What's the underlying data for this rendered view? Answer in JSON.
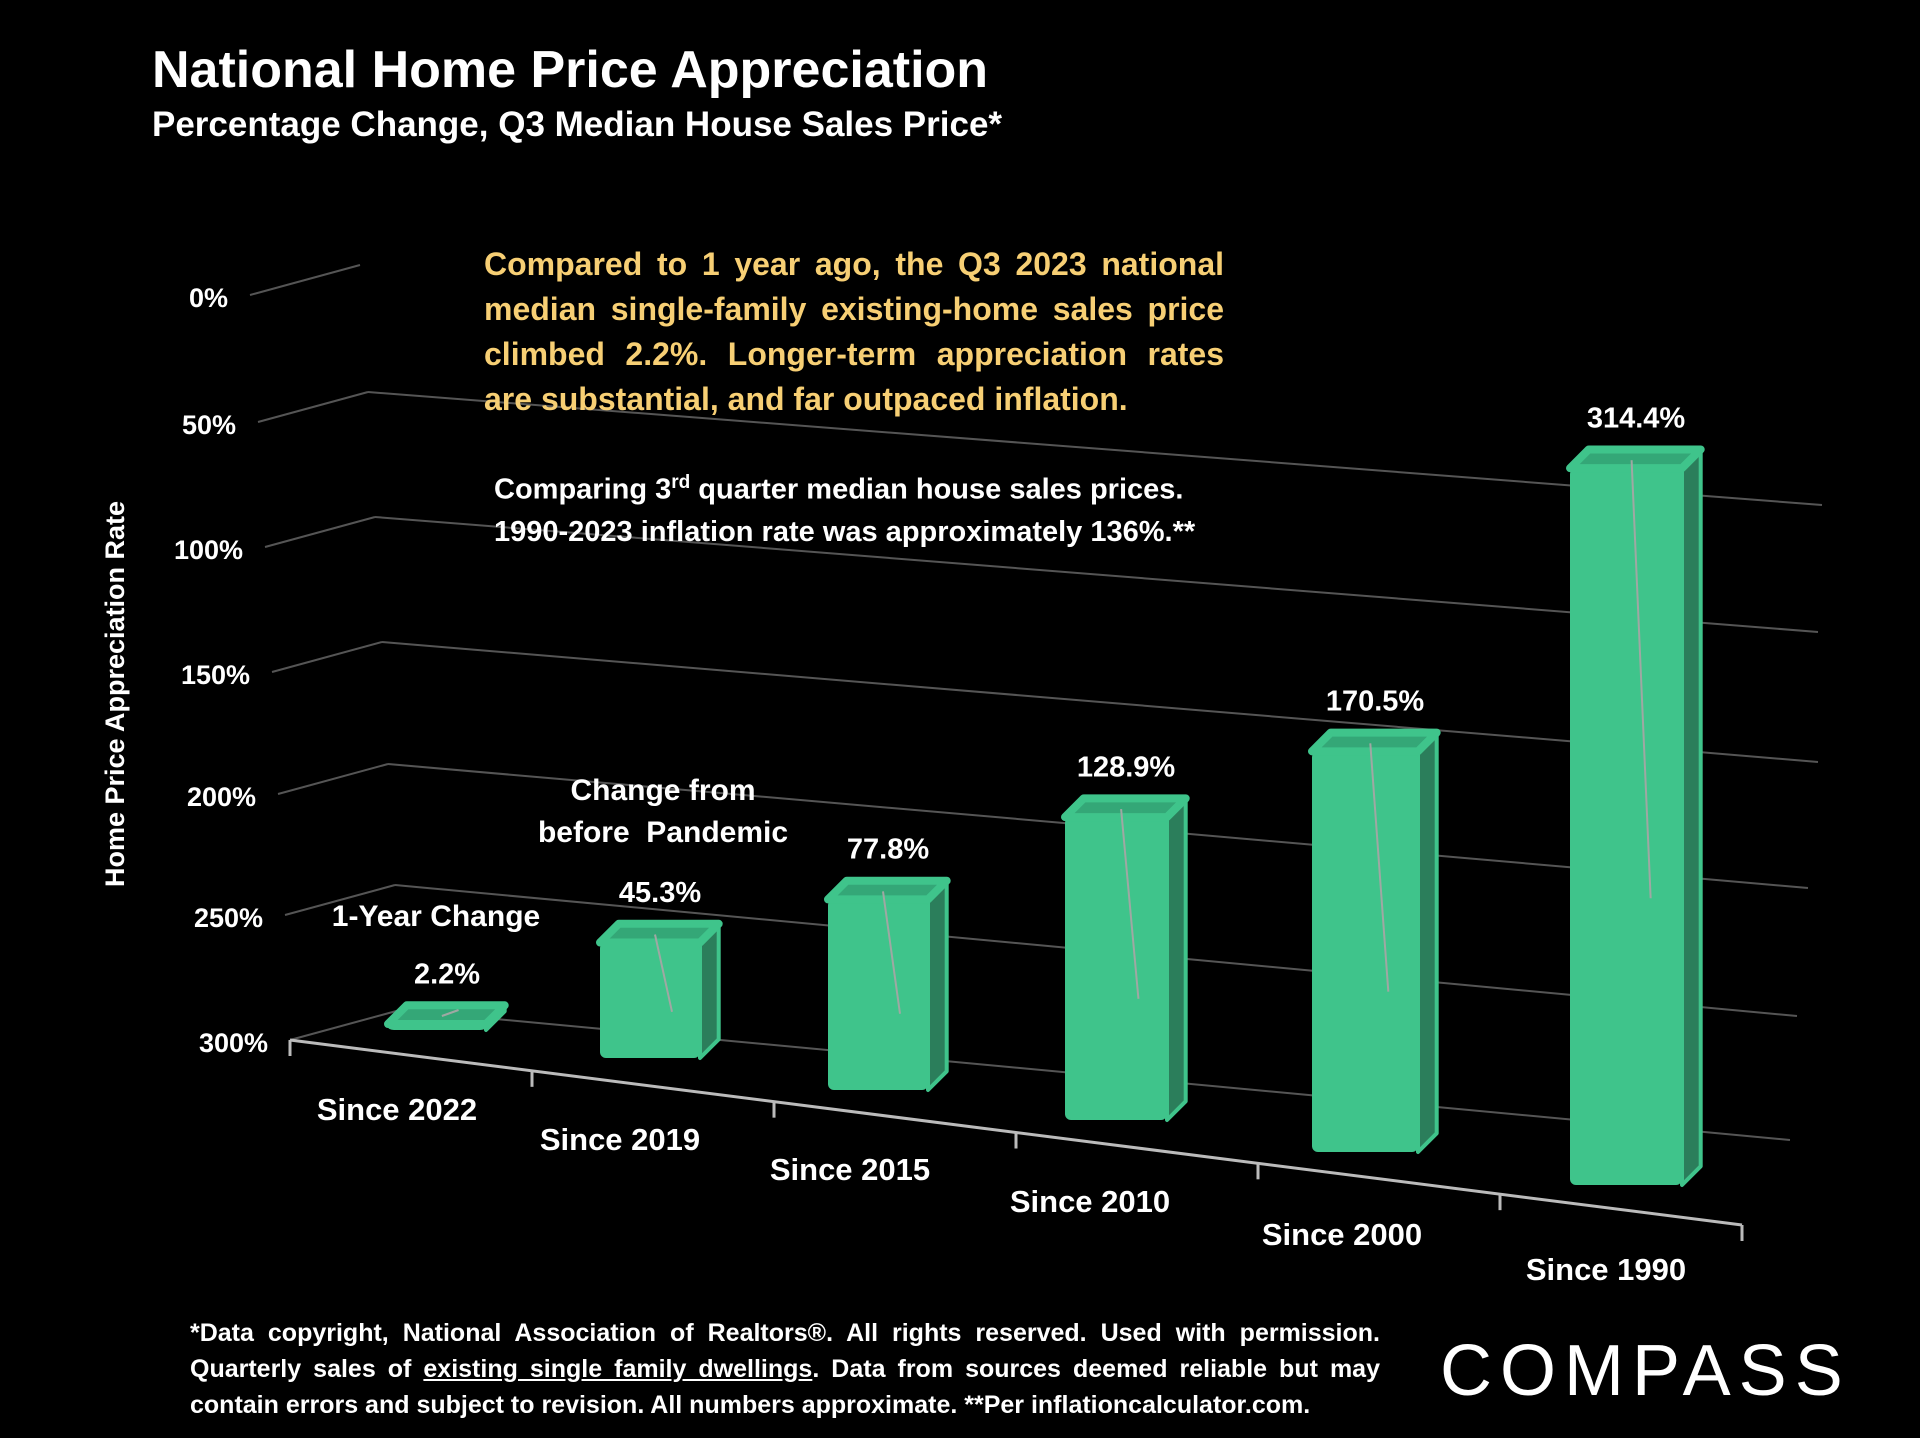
{
  "header": {
    "title": "National Home Price Appreciation",
    "subtitle": "Percentage Change, Q3 Median House Sales Price*"
  },
  "callout": {
    "text": "Compared to 1 year ago, the Q3 2023 national median single-family existing-home sales price climbed 2.2%. Longer-term appreciation rates are substantial, and far outpaced inflation."
  },
  "note": {
    "line1_prefix": "Comparing 3",
    "line1_sup": "rd",
    "line1_suffix": " quarter median house sales prices.",
    "line2": "1990-2023 inflation rate was approximately 136%.**"
  },
  "annotations": {
    "one_year": "1-Year Change",
    "pandemic_line1": "Change from",
    "pandemic_line2": "before  Pandemic"
  },
  "footnote": {
    "part1": "*Data copyright, National Association of Realtors®. All rights reserved. Used with permission. Quarterly sales of ",
    "underlined": "existing single family dwellings",
    "part2": ". Data from sources deemed reliable but may contain errors and subject to revision. All numbers  approximate. **Per inflationcalculator.com."
  },
  "logo": {
    "text": "COMPASS"
  },
  "colors": {
    "bar_front": "#3fc48b",
    "bar_side": "#2b7e5b",
    "bar_top": "#34a777",
    "callout": "#f7cf74",
    "background": "#000000"
  },
  "chart_data": {
    "type": "bar",
    "title": "National Home Price Appreciation",
    "subtitle": "Percentage Change, Q3 Median House Sales Price*",
    "categories": [
      "Since 2022",
      "Since 2019",
      "Since 2015",
      "Since 2010",
      "Since 2000",
      "Since 1990"
    ],
    "values": [
      2.2,
      45.3,
      77.8,
      128.9,
      170.5,
      314.4
    ],
    "value_labels": [
      "2.2%",
      "45.3%",
      "77.8%",
      "128.9%",
      "170.5%",
      "314.4%"
    ],
    "ylabel": "Home Price Appreciation Rate",
    "xlabel": "",
    "yticks": [
      0,
      50,
      100,
      150,
      200,
      250,
      300
    ],
    "ytick_labels": [
      "0%",
      "50%",
      "100%",
      "150%",
      "200%",
      "250%",
      "300%"
    ],
    "ylim": [
      0,
      300
    ],
    "grid": true,
    "style": "3d-perspective"
  }
}
